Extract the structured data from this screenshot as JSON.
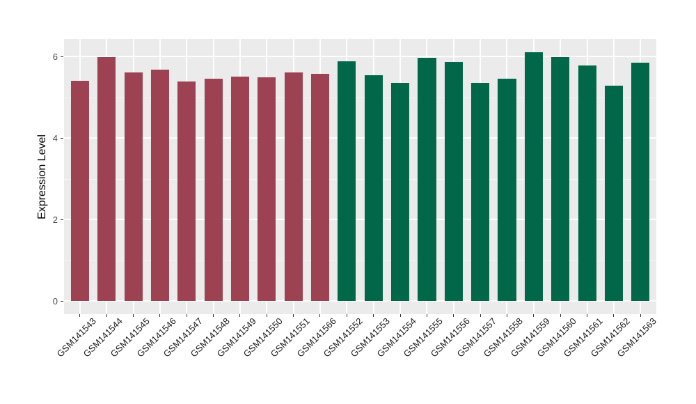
{
  "chart_data": {
    "type": "bar",
    "title": "",
    "xlabel": "",
    "ylabel": "Expression Level",
    "ylim": [
      -0.31,
      6.42
    ],
    "yticks": [
      0,
      2,
      4,
      6
    ],
    "minor_yticks": [
      1,
      3,
      5
    ],
    "grid": "on",
    "legend": "none",
    "panel_background": "#EBEBEB",
    "gridline_color": "#FFFFFF",
    "axis_tick_color": "#333333",
    "y_tick_text_color": "#4D4D4D",
    "x_tick_text_color": "#1A1A1A",
    "categories": [
      "GSM141543",
      "GSM141544",
      "GSM141545",
      "GSM141546",
      "GSM141547",
      "GSM141548",
      "GSM141549",
      "GSM141550",
      "GSM141551",
      "GSM141566",
      "GSM141552",
      "GSM141553",
      "GSM141554",
      "GSM141555",
      "GSM141556",
      "GSM141557",
      "GSM141558",
      "GSM141559",
      "GSM141560",
      "GSM141561",
      "GSM141562",
      "GSM141563"
    ],
    "values": [
      5.4,
      5.99,
      5.6,
      5.67,
      5.38,
      5.45,
      5.51,
      5.49,
      5.6,
      5.57,
      5.88,
      5.54,
      5.35,
      5.97,
      5.86,
      5.35,
      5.45,
      6.1,
      5.98,
      5.77,
      5.29,
      5.85
    ],
    "groups": [
      "group1",
      "group1",
      "group1",
      "group1",
      "group1",
      "group1",
      "group1",
      "group1",
      "group1",
      "group1",
      "group2",
      "group2",
      "group2",
      "group2",
      "group2",
      "group2",
      "group2",
      "group2",
      "group2",
      "group2",
      "group2",
      "group2"
    ],
    "group_colors": {
      "group1": "#9C4252",
      "group2": "#006849"
    }
  }
}
